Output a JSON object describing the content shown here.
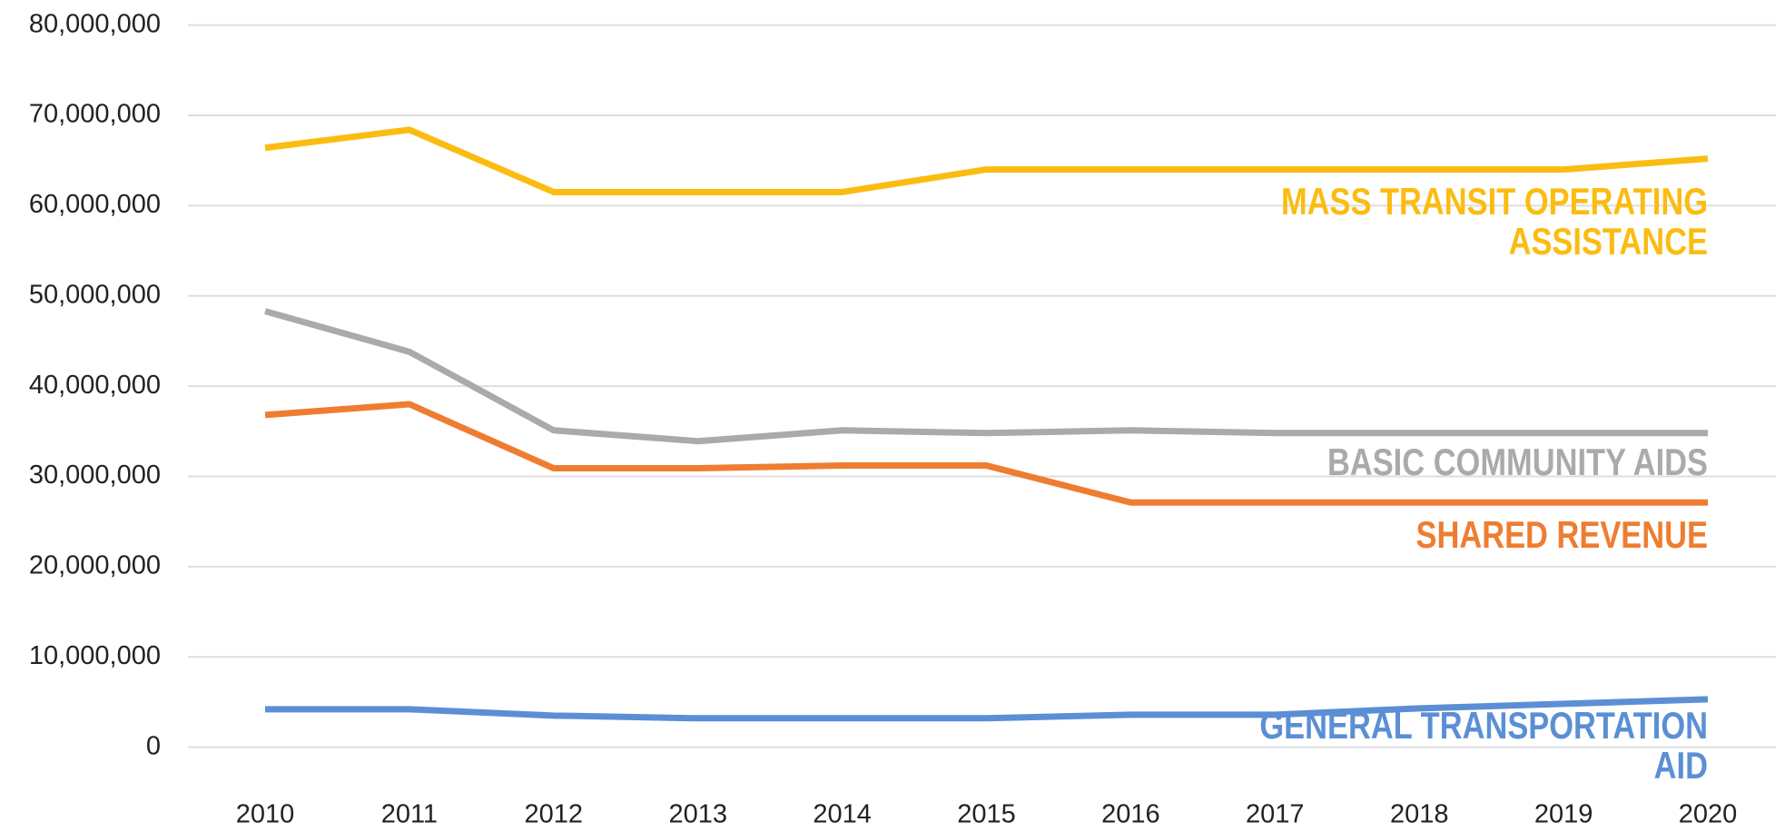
{
  "chart_data": {
    "type": "line",
    "categories": [
      "2010",
      "2011",
      "2012",
      "2013",
      "2014",
      "2015",
      "2016",
      "2017",
      "2018",
      "2019",
      "2020"
    ],
    "ylim": [
      0,
      80000000
    ],
    "yticks": [
      0,
      {
        "value": 10000000,
        "label": "10,000,000"
      },
      {
        "value": 20000000,
        "label": "20,000,000"
      },
      {
        "value": 30000000,
        "label": "30,000,000"
      },
      {
        "value": 40000000,
        "label": "40,000,000"
      },
      {
        "value": 50000000,
        "label": "50,000,000"
      },
      {
        "value": 60000000,
        "label": "60,000,000"
      },
      {
        "value": 70000000,
        "label": "70,000,000"
      },
      {
        "value": 80000000,
        "label": "80,000,000"
      }
    ],
    "grid": true,
    "series": [
      {
        "name": "MASS TRANSIT OPERATING ASSISTANCE",
        "color": "#fbbc12",
        "values": [
          66400000,
          68400000,
          61500000,
          61500000,
          61500000,
          64000000,
          64000000,
          64000000,
          64000000,
          64000000,
          65200000
        ]
      },
      {
        "name": "BASIC COMMUNITY AIDS",
        "color": "#aaaaaa",
        "values": [
          48300000,
          43800000,
          35100000,
          33900000,
          35100000,
          34800000,
          35100000,
          34800000,
          34800000,
          34800000,
          34800000
        ]
      },
      {
        "name": "SHARED REVENUE",
        "color": "#ee7d31",
        "values": [
          36800000,
          38000000,
          30900000,
          30900000,
          31200000,
          31200000,
          27100000,
          27100000,
          27100000,
          27100000,
          27100000
        ]
      },
      {
        "name": "GENERAL TRANSPORTATION AID",
        "color": "#5b8fd5",
        "values": [
          4200000,
          4200000,
          3500000,
          3200000,
          3200000,
          3200000,
          3600000,
          3600000,
          4300000,
          4800000,
          5300000
        ]
      }
    ]
  }
}
